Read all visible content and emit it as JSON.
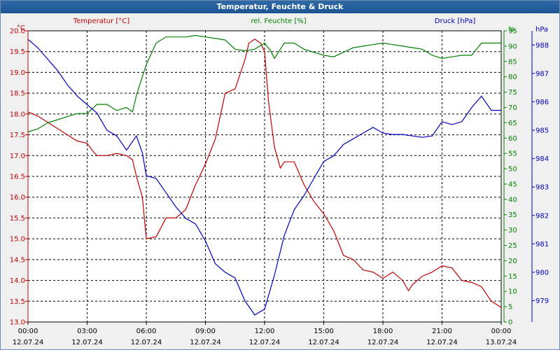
{
  "window": {
    "title": "Temperatur, Feuchte & Druck"
  },
  "chart_data": {
    "type": "line",
    "title": "Temperatur, Feuchte & Druck",
    "grid": true,
    "x_unit": "hours since 12.07.24 00:00",
    "x_range": [
      0,
      24
    ],
    "x_ticks": [
      {
        "x": 0,
        "time": "00:00",
        "date": "12.07.24"
      },
      {
        "x": 3,
        "time": "03:00",
        "date": "12.07.24"
      },
      {
        "x": 6,
        "time": "06:00",
        "date": "12.07.24"
      },
      {
        "x": 9,
        "time": "09:00",
        "date": "12.07.24"
      },
      {
        "x": 12,
        "time": "12:00",
        "date": "12.07.24"
      },
      {
        "x": 15,
        "time": "15:00",
        "date": "12.07.24"
      },
      {
        "x": 18,
        "time": "18:00",
        "date": "12.07.24"
      },
      {
        "x": 21,
        "time": "21:00",
        "date": "12.07.24"
      },
      {
        "x": 24,
        "time": "00:00",
        "date": "13.07.24"
      }
    ],
    "axes": {
      "temp": {
        "unit": "°C",
        "color": "#c00000",
        "range": [
          13.0,
          20.0
        ],
        "ticks": [
          "13.0",
          "13.5",
          "14.0",
          "14.5",
          "15.0",
          "15.5",
          "16.0",
          "16.5",
          "17.0",
          "17.5",
          "18.0",
          "18.5",
          "19.0",
          "19.5",
          "20.0"
        ]
      },
      "hum": {
        "unit": "%",
        "color": "#008000",
        "range": [
          0,
          95
        ],
        "ticks": [
          "0",
          "5",
          "10",
          "15",
          "20",
          "25",
          "30",
          "35",
          "40",
          "45",
          "50",
          "55",
          "60",
          "65",
          "70",
          "75",
          "80",
          "85",
          "90",
          "95"
        ]
      },
      "press": {
        "unit": "hPa",
        "color": "#0000c0",
        "range": [
          978.25,
          988.5
        ],
        "ticks": [
          "979",
          "980",
          "981",
          "982",
          "983",
          "984",
          "985",
          "986",
          "987",
          "988"
        ]
      }
    },
    "series": [
      {
        "name": "Temperatur [°C]",
        "axis": "temp",
        "color": "#c00000",
        "x": [
          0,
          0.5,
          1,
          1.5,
          2,
          2.5,
          3,
          3.3,
          3.5,
          4,
          4.5,
          5,
          5.3,
          5.5,
          5.8,
          6,
          6.5,
          7,
          7.5,
          8,
          8.5,
          9,
          9.5,
          10,
          10.5,
          11,
          11.2,
          11.5,
          11.8,
          12,
          12.2,
          12.5,
          12.8,
          13,
          13.5,
          14,
          14.5,
          15,
          15.5,
          16,
          16.5,
          17,
          17.5,
          18,
          18.5,
          19,
          19.3,
          19.5,
          20,
          20.5,
          21,
          21.5,
          22,
          22.5,
          23,
          23.5,
          24
        ],
        "y": [
          18.05,
          17.95,
          17.8,
          17.65,
          17.5,
          17.35,
          17.3,
          17.1,
          17.0,
          17.0,
          17.05,
          17.0,
          16.9,
          16.5,
          16.0,
          15.0,
          15.05,
          15.5,
          15.5,
          15.7,
          16.3,
          16.8,
          17.4,
          18.5,
          18.6,
          19.3,
          19.7,
          19.8,
          19.7,
          19.5,
          18.3,
          17.2,
          16.7,
          16.85,
          16.85,
          16.3,
          15.9,
          15.6,
          15.2,
          14.6,
          14.5,
          14.25,
          14.2,
          14.05,
          14.2,
          14.0,
          13.75,
          13.9,
          14.1,
          14.2,
          14.35,
          14.3,
          14.0,
          13.95,
          13.85,
          13.5,
          13.35
        ]
      },
      {
        "name": "rel. Feuchte [%]",
        "axis": "hum",
        "color": "#008000",
        "x": [
          0,
          0.5,
          1,
          1.5,
          2,
          2.5,
          3,
          3.5,
          4,
          4.5,
          5,
          5.3,
          5.5,
          6,
          6.5,
          7,
          7.5,
          8,
          8.5,
          9,
          9.5,
          10,
          10.5,
          11,
          11.5,
          12,
          12.3,
          12.5,
          13,
          13.5,
          14,
          14.5,
          15,
          15.5,
          16,
          16.5,
          17,
          17.5,
          18,
          18.5,
          19,
          19.5,
          20,
          20.5,
          21,
          21.5,
          22,
          22.5,
          23,
          23.5,
          24
        ],
        "y": [
          62,
          63,
          65,
          66,
          67,
          68,
          68,
          71,
          71,
          69,
          70,
          68.5,
          74,
          84,
          91,
          93,
          93,
          93,
          93.5,
          93,
          92.5,
          92,
          89,
          88.5,
          89,
          91,
          88.5,
          86,
          91,
          91,
          89,
          88,
          87,
          86.5,
          88,
          89.5,
          90,
          90.5,
          91,
          90.5,
          90,
          89.5,
          89,
          87,
          86,
          86.5,
          87,
          87,
          91,
          91,
          91
        ]
      },
      {
        "name": "Druck [hPa]",
        "axis": "press",
        "color": "#0000c0",
        "x": [
          0,
          0.5,
          1,
          1.5,
          2,
          2.5,
          3,
          3.5,
          4,
          4.5,
          5,
          5.5,
          5.8,
          6,
          6.5,
          7,
          7.5,
          8,
          8.5,
          9,
          9.5,
          10,
          10.5,
          11,
          11.5,
          12,
          12.5,
          13,
          13.5,
          14,
          14.5,
          15,
          15.5,
          16,
          16.5,
          17,
          17.5,
          18,
          18.5,
          19,
          19.5,
          20,
          20.5,
          21,
          21.5,
          22,
          22.5,
          23,
          23.5,
          24
        ],
        "y": [
          988.2,
          987.9,
          987.5,
          987.1,
          986.6,
          986.2,
          985.9,
          985.6,
          985.0,
          984.8,
          984.3,
          984.8,
          984.2,
          983.4,
          983.3,
          982.8,
          982.3,
          981.9,
          981.7,
          981.1,
          980.3,
          980.0,
          979.8,
          979.0,
          978.5,
          978.7,
          979.9,
          981.3,
          982.2,
          982.7,
          983.3,
          983.9,
          984.1,
          984.5,
          984.7,
          984.9,
          985.1,
          984.9,
          984.85,
          984.85,
          984.8,
          984.75,
          984.8,
          985.3,
          985.2,
          985.3,
          985.8,
          986.2,
          985.7,
          985.7
        ]
      }
    ]
  }
}
